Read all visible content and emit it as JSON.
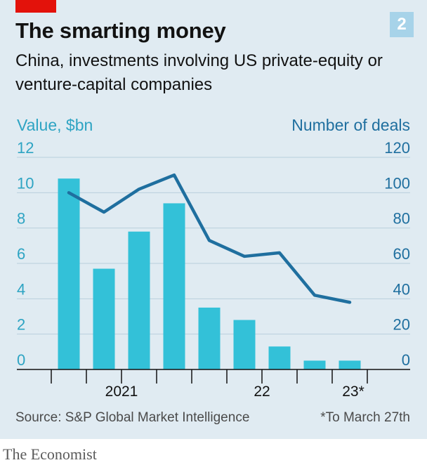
{
  "header": {
    "title": "The smarting money",
    "subtitle": "China, investments involving US private-equity or venture-capital companies",
    "chart_number": "2"
  },
  "footer": {
    "source": "Source: S&P Global Market Intelligence",
    "footnote": "*To March 27th",
    "brand": "The Economist"
  },
  "colors": {
    "bars": "#33c1d8",
    "line": "#1f6f9f",
    "background": "#e0ebf2",
    "accent": "#e3120b"
  },
  "chart_data": {
    "type": "bar+line",
    "categories": [
      "2021 Q1",
      "2021 Q2",
      "2021 Q3",
      "2021 Q4",
      "2022 Q1",
      "2022 Q2",
      "2022 Q3",
      "2022 Q4",
      "2023 Q1*"
    ],
    "x_tick_labels": [
      "2021",
      "22",
      "23*"
    ],
    "left_axis": {
      "label": "Value, $bn",
      "ylim": [
        0,
        12
      ],
      "ticks": [
        "0",
        "2",
        "4",
        "6",
        "8",
        "10",
        "12"
      ]
    },
    "right_axis": {
      "label": "Number of deals",
      "ylim": [
        0,
        120
      ],
      "ticks": [
        "0",
        "20",
        "40",
        "60",
        "80",
        "100",
        "120"
      ]
    },
    "series": [
      {
        "type": "bar",
        "axis": "left",
        "values": [
          10.8,
          5.7,
          7.8,
          9.4,
          3.5,
          2.8,
          1.3,
          0.5,
          0.5
        ]
      },
      {
        "type": "line",
        "axis": "right",
        "values": [
          100,
          89,
          102,
          110,
          73,
          64,
          66,
          42,
          38
        ]
      }
    ],
    "grid": true
  }
}
